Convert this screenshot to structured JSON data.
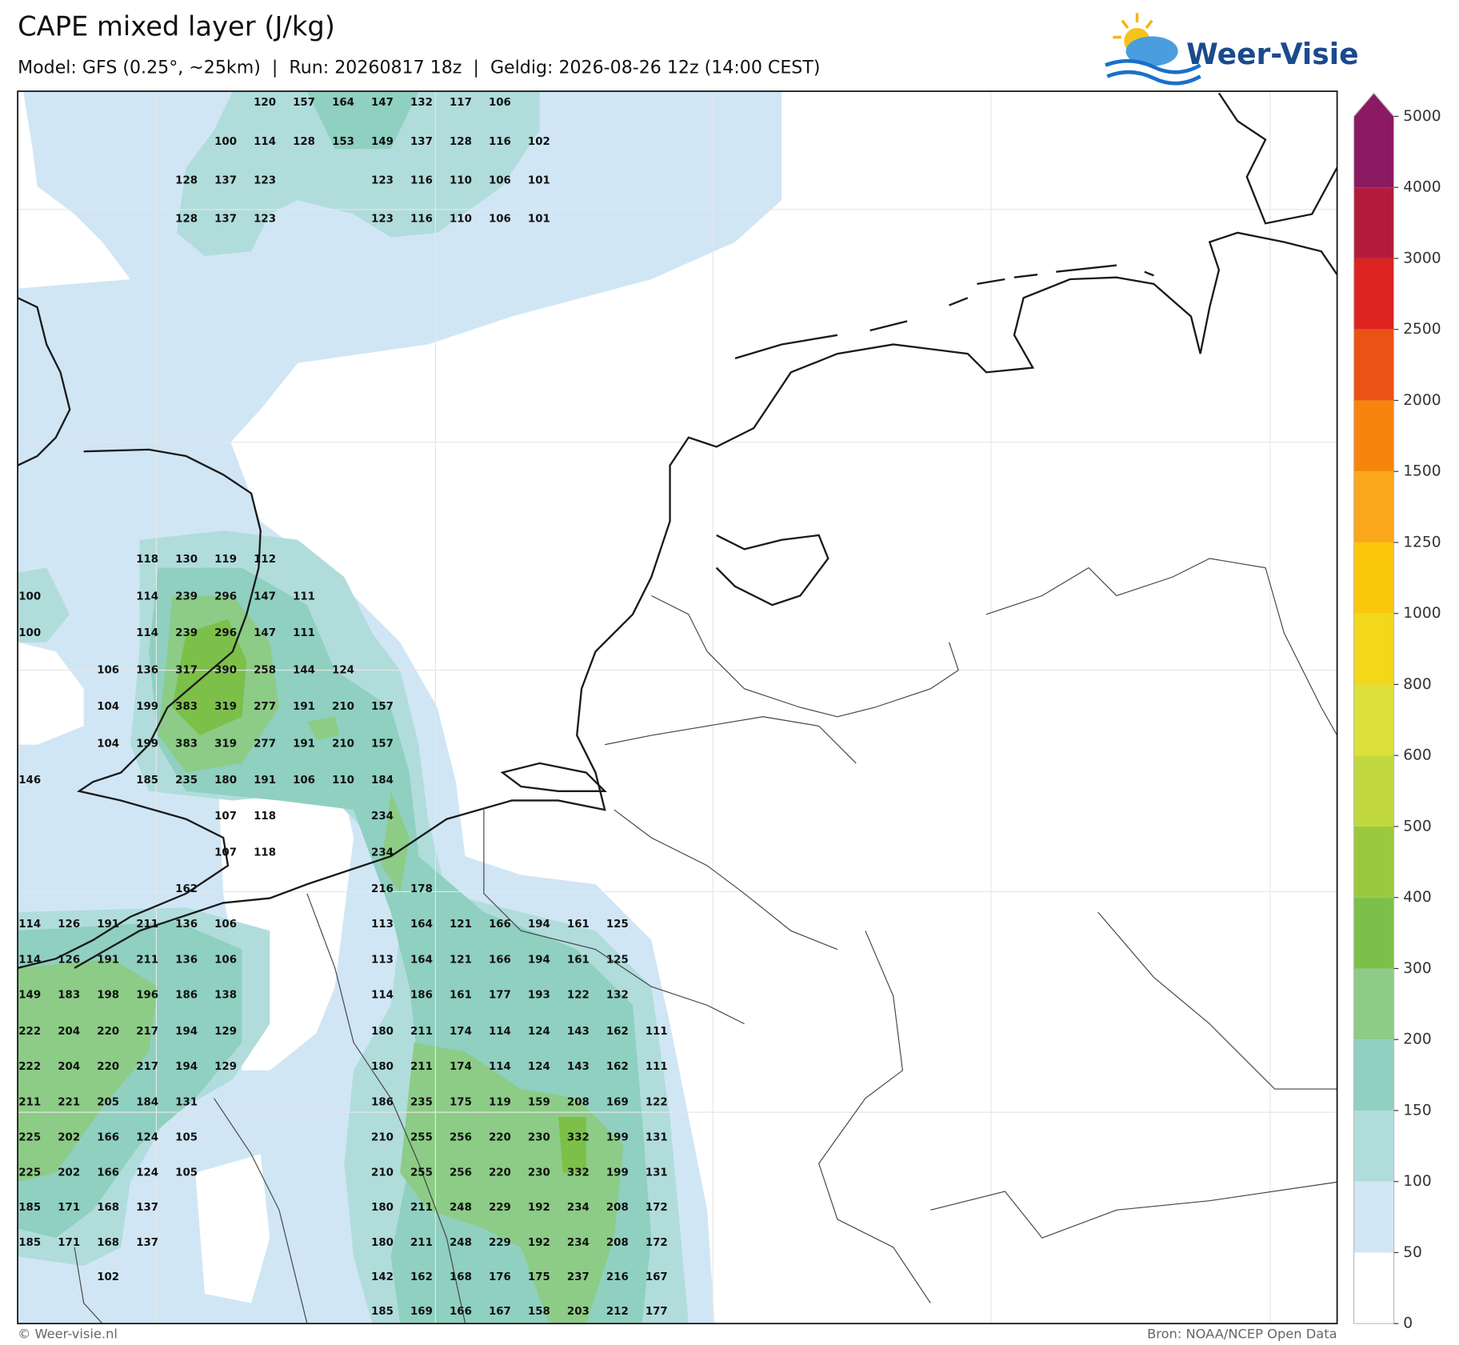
{
  "header": {
    "title": "CAPE mixed layer (J/kg)",
    "subtitle": "Model: GFS (0.25°, ~25km)  |  Run: 20260817 18z  |  Geldig: 2026-08-26 12z (14:00 CEST)"
  },
  "logo": {
    "text": "Weer-Visie"
  },
  "footer": {
    "left": "© Weer-visie.nl",
    "right": "Bron: NOAA/NCEP Open Data"
  },
  "colorbar": {
    "ticks": [
      0,
      50,
      100,
      150,
      200,
      300,
      400,
      500,
      600,
      800,
      1000,
      1250,
      1500,
      2000,
      2500,
      3000,
      4000,
      5000
    ],
    "colors": [
      "#ffffff",
      "#d0e6f5",
      "#b1dcdc",
      "#8fd0c0",
      "#8ccc86",
      "#7cc04a",
      "#9bc93e",
      "#c2d83f",
      "#dde03a",
      "#f2d71b",
      "#fbc70a",
      "#fba71c",
      "#f7850d",
      "#ea5216",
      "#dc2320",
      "#b31b3e",
      "#8b1a62"
    ],
    "extend_color": "#8b1a62"
  },
  "grid": {
    "rows": [
      [
        null,
        null,
        null,
        null,
        null,
        null,
        120,
        157,
        164,
        147,
        132,
        117,
        106,
        null,
        null,
        null,
        null
      ],
      [
        null,
        null,
        null,
        null,
        null,
        100,
        114,
        128,
        153,
        149,
        137,
        128,
        116,
        102,
        null,
        null,
        null
      ],
      [
        null,
        null,
        null,
        null,
        128,
        137,
        123,
        null,
        null,
        123,
        116,
        110,
        106,
        101,
        null,
        null,
        null
      ],
      [
        null,
        null,
        null,
        null,
        128,
        137,
        123,
        null,
        null,
        123,
        116,
        110,
        106,
        101,
        null,
        null,
        null
      ],
      [
        null,
        null,
        null,
        118,
        130,
        119,
        112,
        null,
        null,
        null,
        null,
        null,
        null,
        null,
        null,
        null,
        null
      ],
      [
        100,
        null,
        null,
        114,
        239,
        296,
        147,
        111,
        null,
        null,
        null,
        null,
        null,
        null,
        null,
        null,
        null
      ],
      [
        100,
        null,
        null,
        114,
        239,
        296,
        147,
        111,
        null,
        null,
        null,
        null,
        null,
        null,
        null,
        null,
        null
      ],
      [
        null,
        null,
        106,
        136,
        317,
        390,
        258,
        144,
        124,
        null,
        null,
        null,
        null,
        null,
        null,
        null,
        null
      ],
      [
        null,
        null,
        104,
        199,
        383,
        319,
        277,
        191,
        210,
        157,
        null,
        null,
        null,
        null,
        null,
        null,
        null
      ],
      [
        null,
        null,
        104,
        199,
        383,
        319,
        277,
        191,
        210,
        157,
        null,
        null,
        null,
        null,
        null,
        null,
        null
      ],
      [
        146,
        null,
        null,
        185,
        235,
        180,
        191,
        106,
        110,
        184,
        null,
        null,
        null,
        null,
        null,
        null,
        null
      ],
      [
        null,
        null,
        null,
        null,
        null,
        107,
        118,
        null,
        null,
        234,
        null,
        null,
        null,
        null,
        null,
        null,
        null
      ],
      [
        null,
        null,
        null,
        null,
        null,
        107,
        118,
        null,
        null,
        234,
        null,
        null,
        null,
        null,
        null,
        null,
        null
      ],
      [
        null,
        null,
        null,
        null,
        162,
        null,
        null,
        null,
        null,
        216,
        178,
        null,
        null,
        null,
        null,
        null,
        null
      ],
      [
        114,
        126,
        191,
        211,
        136,
        106,
        null,
        null,
        null,
        113,
        164,
        121,
        166,
        194,
        161,
        125,
        null
      ],
      [
        114,
        126,
        191,
        211,
        136,
        106,
        null,
        null,
        null,
        113,
        164,
        121,
        166,
        194,
        161,
        125,
        null
      ],
      [
        149,
        183,
        198,
        196,
        186,
        138,
        null,
        null,
        null,
        114,
        186,
        161,
        177,
        193,
        122,
        132,
        null
      ],
      [
        222,
        204,
        220,
        217,
        194,
        129,
        null,
        null,
        null,
        180,
        211,
        174,
        114,
        124,
        143,
        162,
        111
      ],
      [
        222,
        204,
        220,
        217,
        194,
        129,
        null,
        null,
        null,
        180,
        211,
        174,
        114,
        124,
        143,
        162,
        111
      ],
      [
        211,
        221,
        205,
        184,
        131,
        null,
        null,
        null,
        null,
        186,
        235,
        175,
        119,
        159,
        208,
        169,
        122
      ],
      [
        225,
        202,
        166,
        124,
        105,
        null,
        null,
        null,
        null,
        210,
        255,
        256,
        220,
        230,
        332,
        199,
        131
      ],
      [
        225,
        202,
        166,
        124,
        105,
        null,
        null,
        null,
        null,
        210,
        255,
        256,
        220,
        230,
        332,
        199,
        131
      ],
      [
        185,
        171,
        168,
        137,
        null,
        null,
        null,
        null,
        null,
        180,
        211,
        248,
        229,
        192,
        234,
        208,
        172
      ],
      [
        185,
        171,
        168,
        137,
        null,
        null,
        null,
        null,
        null,
        180,
        211,
        248,
        229,
        192,
        234,
        208,
        172
      ],
      [
        null,
        null,
        102,
        null,
        null,
        null,
        null,
        null,
        null,
        142,
        162,
        168,
        176,
        175,
        237,
        216,
        167
      ],
      [
        null,
        null,
        null,
        null,
        null,
        null,
        null,
        null,
        null,
        185,
        169,
        166,
        167,
        158,
        203,
        212,
        177
      ]
    ]
  }
}
